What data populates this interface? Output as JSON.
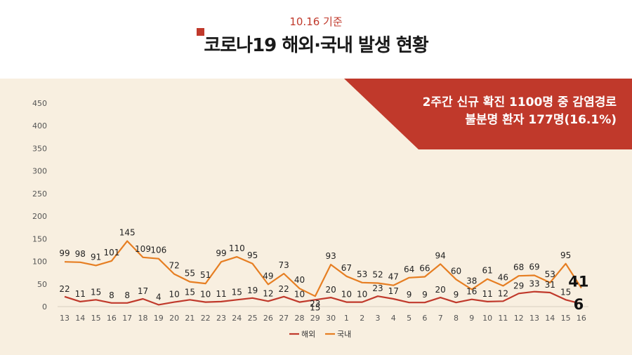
{
  "header": {
    "date": "10.16 기준",
    "title": "코로나19 해외·국내 발생 현황"
  },
  "callout": {
    "line1": "2주간 신규 확진 1100명 중 감염경로",
    "line2": "불분명 환자 177명(16.1%)"
  },
  "colors": {
    "overseas": "#c0392b",
    "domestic": "#e67e22",
    "banner": "#c0392b",
    "panel": "#f8efe0"
  },
  "chart_data": {
    "type": "line",
    "x": [
      "13",
      "14",
      "15",
      "16",
      "17",
      "18",
      "19",
      "20",
      "21",
      "22",
      "23",
      "24",
      "25",
      "26",
      "27",
      "28",
      "29",
      "30",
      "1",
      "2",
      "3",
      "4",
      "5",
      "6",
      "7",
      "8",
      "9",
      "10",
      "11",
      "12",
      "13",
      "14",
      "15",
      "16"
    ],
    "series": [
      {
        "name": "해외",
        "values": [
          22,
          11,
          15,
          8,
          8,
          17,
          4,
          10,
          15,
          10,
          11,
          15,
          19,
          12,
          22,
          10,
          15,
          20,
          10,
          10,
          23,
          17,
          9,
          9,
          20,
          9,
          16,
          11,
          12,
          29,
          33,
          31,
          15,
          6
        ]
      },
      {
        "name": "국내",
        "values": [
          99,
          98,
          91,
          101,
          145,
          109,
          106,
          72,
          55,
          51,
          99,
          110,
          95,
          49,
          73,
          40,
          23,
          93,
          67,
          53,
          52,
          47,
          64,
          66,
          94,
          60,
          38,
          61,
          46,
          68,
          69,
          53,
          95,
          41
        ]
      }
    ],
    "ylim": [
      0,
      450
    ],
    "yticks": [
      "0",
      "50",
      "100",
      "150",
      "200",
      "250",
      "300",
      "350",
      "400",
      "450"
    ],
    "grid": false,
    "legend": "bottom"
  }
}
